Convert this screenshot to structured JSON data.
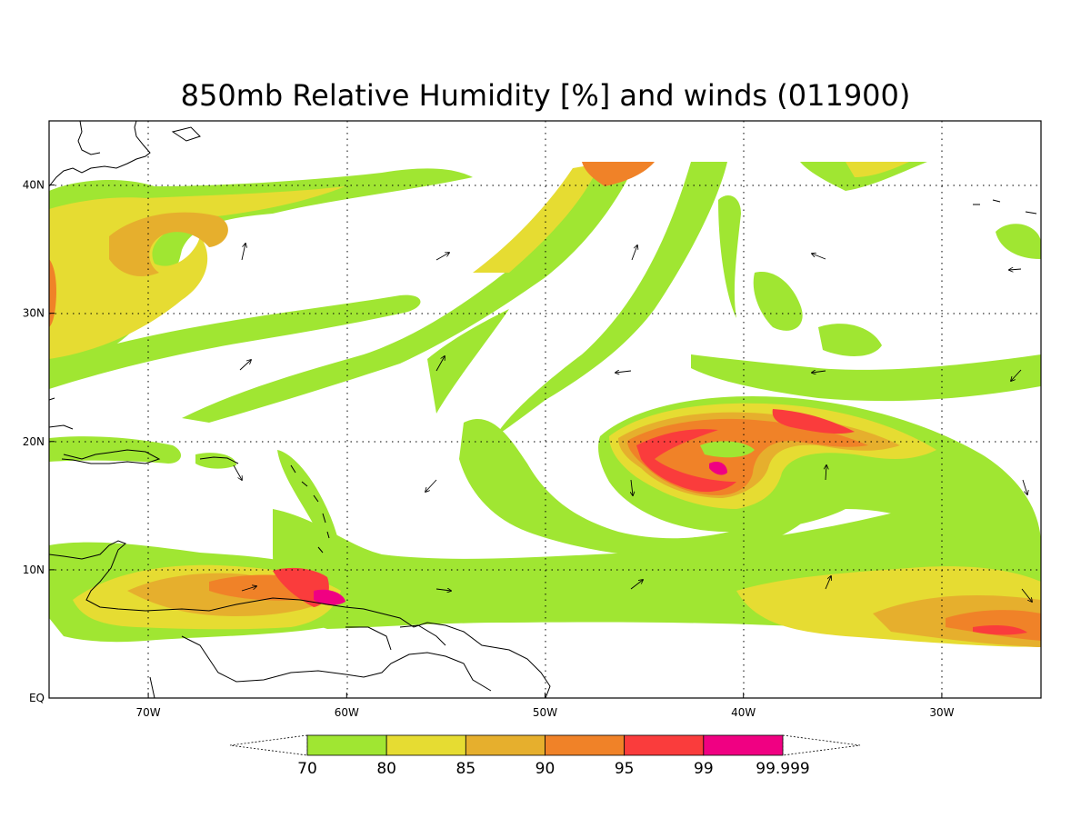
{
  "title": "850mb Relative Humidity [%] and winds (011900)",
  "map": {
    "lon_range": [
      -75,
      -25
    ],
    "lat_range": [
      0,
      45
    ],
    "lon_ticks": [
      {
        "value": -70,
        "label": "70W"
      },
      {
        "value": -60,
        "label": "60W"
      },
      {
        "value": -50,
        "label": "50W"
      },
      {
        "value": -40,
        "label": "40W"
      },
      {
        "value": -30,
        "label": "30W"
      }
    ],
    "lat_ticks": [
      {
        "value": 0,
        "label": "EQ"
      },
      {
        "value": 10,
        "label": "10N"
      },
      {
        "value": 20,
        "label": "20N"
      },
      {
        "value": 30,
        "label": "30N"
      },
      {
        "value": 40,
        "label": "40N"
      }
    ],
    "gridlines": true
  },
  "colorbar": {
    "levels": [
      "70",
      "80",
      "85",
      "90",
      "95",
      "99",
      "99.999"
    ],
    "colors": [
      "#a0e632",
      "#e6dc32",
      "#e6af2d",
      "#f08228",
      "#fa3c3c",
      "#f00082"
    ]
  },
  "colors": {
    "lvl70": "#a0e632",
    "lvl80": "#e6dc32",
    "lvl85": "#e6af2d",
    "lvl90": "#f08228",
    "lvl95": "#fa3c3c",
    "lvl99": "#f00082"
  }
}
